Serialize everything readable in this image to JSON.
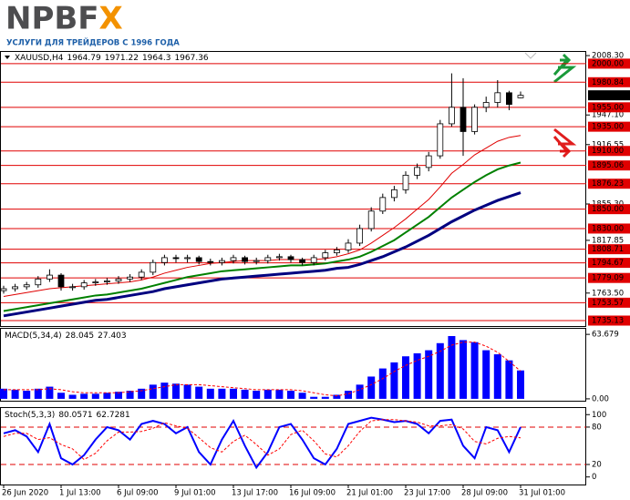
{
  "header": {
    "brand": "NPBFX",
    "tagline": "УСЛУГИ ДЛЯ ТРЕЙДЕРОВ С 1996 ГОДА"
  },
  "chart_data": [
    {
      "type": "candlestick",
      "title": "XAUUSD,H4",
      "categories": [
        "26 Jun 2020",
        null,
        null,
        null,
        null,
        "1 Jul 13:00",
        null,
        null,
        null,
        null,
        "6 Jul 09:00",
        null,
        null,
        null,
        null,
        "9 Jul 01:00",
        null,
        null,
        null,
        null,
        "13 Jul 17:00",
        null,
        null,
        null,
        null,
        "16 Jul 09:00",
        null,
        null,
        null,
        null,
        "21 Jul 01:00",
        null,
        null,
        null,
        null,
        "23 Jul 17:00",
        null,
        null,
        null,
        null,
        "28 Jul 09:00",
        null,
        null,
        null,
        null,
        "31 Jul 01:00"
      ],
      "open": [
        1766,
        1768,
        1770,
        1772,
        1778,
        1782,
        1770,
        1770,
        1774,
        1775,
        1776,
        1778,
        1780,
        1785,
        1795,
        1800,
        1799,
        1800,
        1796,
        1795,
        1797,
        1800,
        1796,
        1797,
        1800,
        1801,
        1798,
        1795,
        1800,
        1805,
        1808,
        1815,
        1830,
        1848,
        1862,
        1870,
        1885,
        1893,
        1905,
        1938,
        1955,
        1930,
        1955,
        1960,
        1970,
        1964.79
      ],
      "high": [
        1771,
        1773,
        1775,
        1781,
        1788,
        1784,
        1773,
        1777,
        1778,
        1779,
        1781,
        1783,
        1788,
        1798,
        1803,
        1803,
        1803,
        1802,
        1799,
        1800,
        1803,
        1802,
        1800,
        1803,
        1804,
        1803,
        1800,
        1803,
        1808,
        1811,
        1819,
        1834,
        1852,
        1866,
        1874,
        1889,
        1897,
        1909,
        1942,
        1990,
        1985,
        1958,
        1966,
        1983,
        1972,
        1971.22
      ],
      "low": [
        1763,
        1765,
        1767,
        1769,
        1775,
        1766,
        1766,
        1767,
        1771,
        1772,
        1773,
        1775,
        1777,
        1782,
        1792,
        1795,
        1795,
        1793,
        1792,
        1792,
        1794,
        1793,
        1793,
        1794,
        1797,
        1795,
        1792,
        1792,
        1797,
        1802,
        1805,
        1812,
        1827,
        1845,
        1858,
        1866,
        1881,
        1889,
        1902,
        1935,
        1905,
        1927,
        1950,
        1955,
        1952,
        1964.3
      ],
      "close": [
        1768,
        1770,
        1772,
        1778,
        1782,
        1770,
        1770,
        1774,
        1775,
        1776,
        1778,
        1780,
        1785,
        1795,
        1800,
        1799,
        1800,
        1796,
        1795,
        1797,
        1800,
        1796,
        1797,
        1800,
        1801,
        1798,
        1795,
        1800,
        1805,
        1808,
        1815,
        1830,
        1848,
        1862,
        1870,
        1885,
        1893,
        1905,
        1938,
        1955,
        1930,
        1955,
        1960,
        1970,
        1958,
        1967.36
      ],
      "lines": [
        {
          "color": "#e00000",
          "values": [
            1760,
            1762,
            1764,
            1766,
            1768,
            1769,
            1770,
            1771,
            1772,
            1773,
            1774,
            1775,
            1777,
            1780,
            1784,
            1787,
            1790,
            1792,
            1794,
            1795,
            1796,
            1797,
            1797,
            1797,
            1798,
            1798,
            1798,
            1798,
            1799,
            1801,
            1804,
            1808,
            1815,
            1823,
            1831,
            1840,
            1850,
            1860,
            1873,
            1887,
            1896,
            1906,
            1913,
            1920,
            1924,
            1926
          ]
        },
        {
          "color": "#008000",
          "values": [
            1745,
            1747,
            1749,
            1751,
            1753,
            1755,
            1757,
            1759,
            1761,
            1762,
            1764,
            1766,
            1768,
            1771,
            1774,
            1777,
            1780,
            1782,
            1784,
            1786,
            1787,
            1788,
            1789,
            1790,
            1791,
            1792,
            1792,
            1793,
            1794,
            1796,
            1798,
            1801,
            1806,
            1812,
            1818,
            1826,
            1834,
            1842,
            1852,
            1862,
            1870,
            1878,
            1885,
            1891,
            1895,
            1898
          ]
        },
        {
          "color": "#000080",
          "values": [
            1740,
            1742,
            1744,
            1746,
            1748,
            1750,
            1752,
            1754,
            1756,
            1757,
            1759,
            1761,
            1763,
            1765,
            1768,
            1770,
            1772,
            1774,
            1776,
            1778,
            1779,
            1780,
            1781,
            1782,
            1783,
            1784,
            1785,
            1786,
            1787,
            1789,
            1790,
            1793,
            1797,
            1801,
            1806,
            1811,
            1817,
            1823,
            1830,
            1837,
            1843,
            1849,
            1854,
            1859,
            1863,
            1867
          ]
        }
      ],
      "ylim": [
        1729.5,
        2012.1
      ],
      "yticks": [
        {
          "value": 2008.3,
          "label": "2008.30"
        },
        {
          "value": 1947.1,
          "label": "1947.10"
        },
        1916.55,
        {
          "value": 1855.3,
          "label": "1855.30"
        },
        1817.85,
        {
          "value": 1763.5,
          "label": "1763.50"
        }
      ],
      "levels": [
        {
          "value": 2000,
          "label": "2000.00"
        },
        {
          "value": 1980.84,
          "label": "1980.84"
        },
        {
          "value": 1955,
          "label": "1955.00"
        },
        {
          "value": 1935,
          "label": "1935.00"
        },
        {
          "value": 1910,
          "label": "1910.00"
        },
        {
          "value": 1895.06,
          "label": "1895.06"
        },
        {
          "value": 1876.23,
          "label": "1876.23"
        },
        {
          "value": 1850,
          "label": "1850.00"
        },
        {
          "value": 1830,
          "label": "1830.00"
        },
        {
          "value": 1808.71,
          "label": "1808.71"
        },
        {
          "value": 1794.67,
          "label": "1794.67"
        },
        {
          "value": 1779.09,
          "label": "1779.09"
        },
        {
          "value": 1753.57,
          "label": "1753.57"
        },
        {
          "value": 1735.13,
          "label": "1735.13"
        }
      ],
      "level_color": "#e00000"
    },
    {
      "type": "macd",
      "title": "MACD(5,34,4)",
      "series": [
        {
          "color": "#0000ff",
          "values": [
            10,
            9,
            8,
            10,
            12,
            6,
            4,
            5,
            5,
            6,
            7,
            8,
            10,
            14,
            16,
            15,
            14,
            12,
            10,
            10,
            10,
            9,
            8,
            9,
            9,
            8,
            6,
            2,
            2,
            4,
            8,
            14,
            22,
            30,
            36,
            42,
            45,
            48,
            55,
            62,
            58,
            56,
            48,
            44,
            38,
            28.045
          ]
        },
        {
          "color": "#ff0000",
          "values": [
            9,
            9,
            9,
            9,
            10,
            9,
            7,
            6,
            6,
            6,
            6,
            7,
            8,
            10,
            12,
            14,
            14,
            14,
            13,
            12,
            11,
            10,
            9,
            9,
            9,
            9,
            8,
            6,
            4,
            3,
            5,
            9,
            14,
            20,
            27,
            33,
            38,
            42,
            47,
            53,
            56,
            56,
            52,
            46,
            37,
            27.403
          ]
        }
      ],
      "ylim": [
        -2.77,
        69.2
      ],
      "yticks": [
        63.679,
        {
          "value": 0,
          "label": "0.00"
        }
      ]
    },
    {
      "type": "stoch",
      "title": "Stoch(5,3,3)",
      "series": [
        {
          "color": "#0000ff",
          "values": [
            70,
            75,
            65,
            40,
            85,
            30,
            20,
            35,
            60,
            80,
            75,
            60,
            85,
            90,
            85,
            70,
            80,
            40,
            20,
            60,
            90,
            50,
            15,
            40,
            80,
            85,
            60,
            30,
            20,
            45,
            85,
            90,
            95,
            92,
            88,
            90,
            85,
            70,
            90,
            92,
            50,
            30,
            80,
            75,
            40,
            80.0571
          ]
        },
        {
          "color": "#ff0000",
          "values": [
            65,
            70,
            70,
            60,
            63,
            52,
            45,
            28,
            38,
            58,
            72,
            72,
            73,
            78,
            87,
            82,
            78,
            63,
            47,
            40,
            57,
            67,
            52,
            35,
            45,
            68,
            75,
            58,
            37,
            32,
            50,
            73,
            90,
            92,
            92,
            90,
            88,
            82,
            82,
            84,
            77,
            57,
            53,
            62,
            65,
            62.7281
          ]
        }
      ],
      "ylim": [
        -13.6,
        110.6
      ],
      "yticks": [
        100,
        80,
        20,
        0
      ],
      "levels": [
        80,
        20
      ]
    }
  ]
}
